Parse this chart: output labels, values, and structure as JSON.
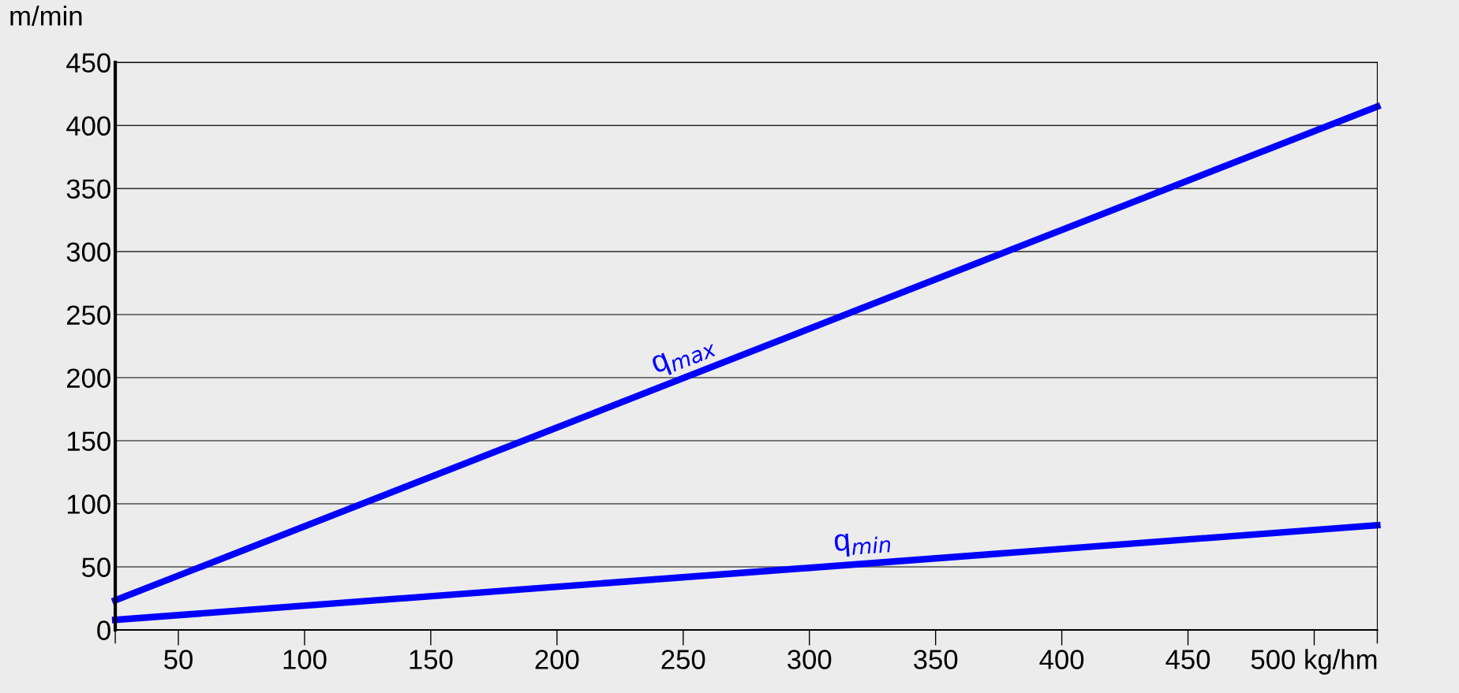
{
  "chart_data": {
    "type": "line",
    "ylabel": "m/min",
    "xlim": [
      25,
      525
    ],
    "ylim": [
      0,
      450
    ],
    "xticks": [
      {
        "value": 25,
        "label": null
      },
      50,
      100,
      150,
      200,
      250,
      300,
      350,
      400,
      450,
      {
        "value": 500,
        "label": "500 kg/hm"
      },
      {
        "value": 525,
        "label": null
      }
    ],
    "yticks": [
      0,
      50,
      100,
      150,
      200,
      250,
      300,
      350,
      400,
      450
    ],
    "grid": "y",
    "marker": "none",
    "line_style": "solid",
    "series": [
      {
        "color": "#0000ff",
        "values": [
          23.5,
          415
        ]
      },
      {
        "color": "#0000ff",
        "values": [
          8,
          83
        ]
      }
    ],
    "x": [
      25,
      525
    ],
    "annotations": [
      "q$_{max}$",
      "q$_{min}$"
    ]
  }
}
